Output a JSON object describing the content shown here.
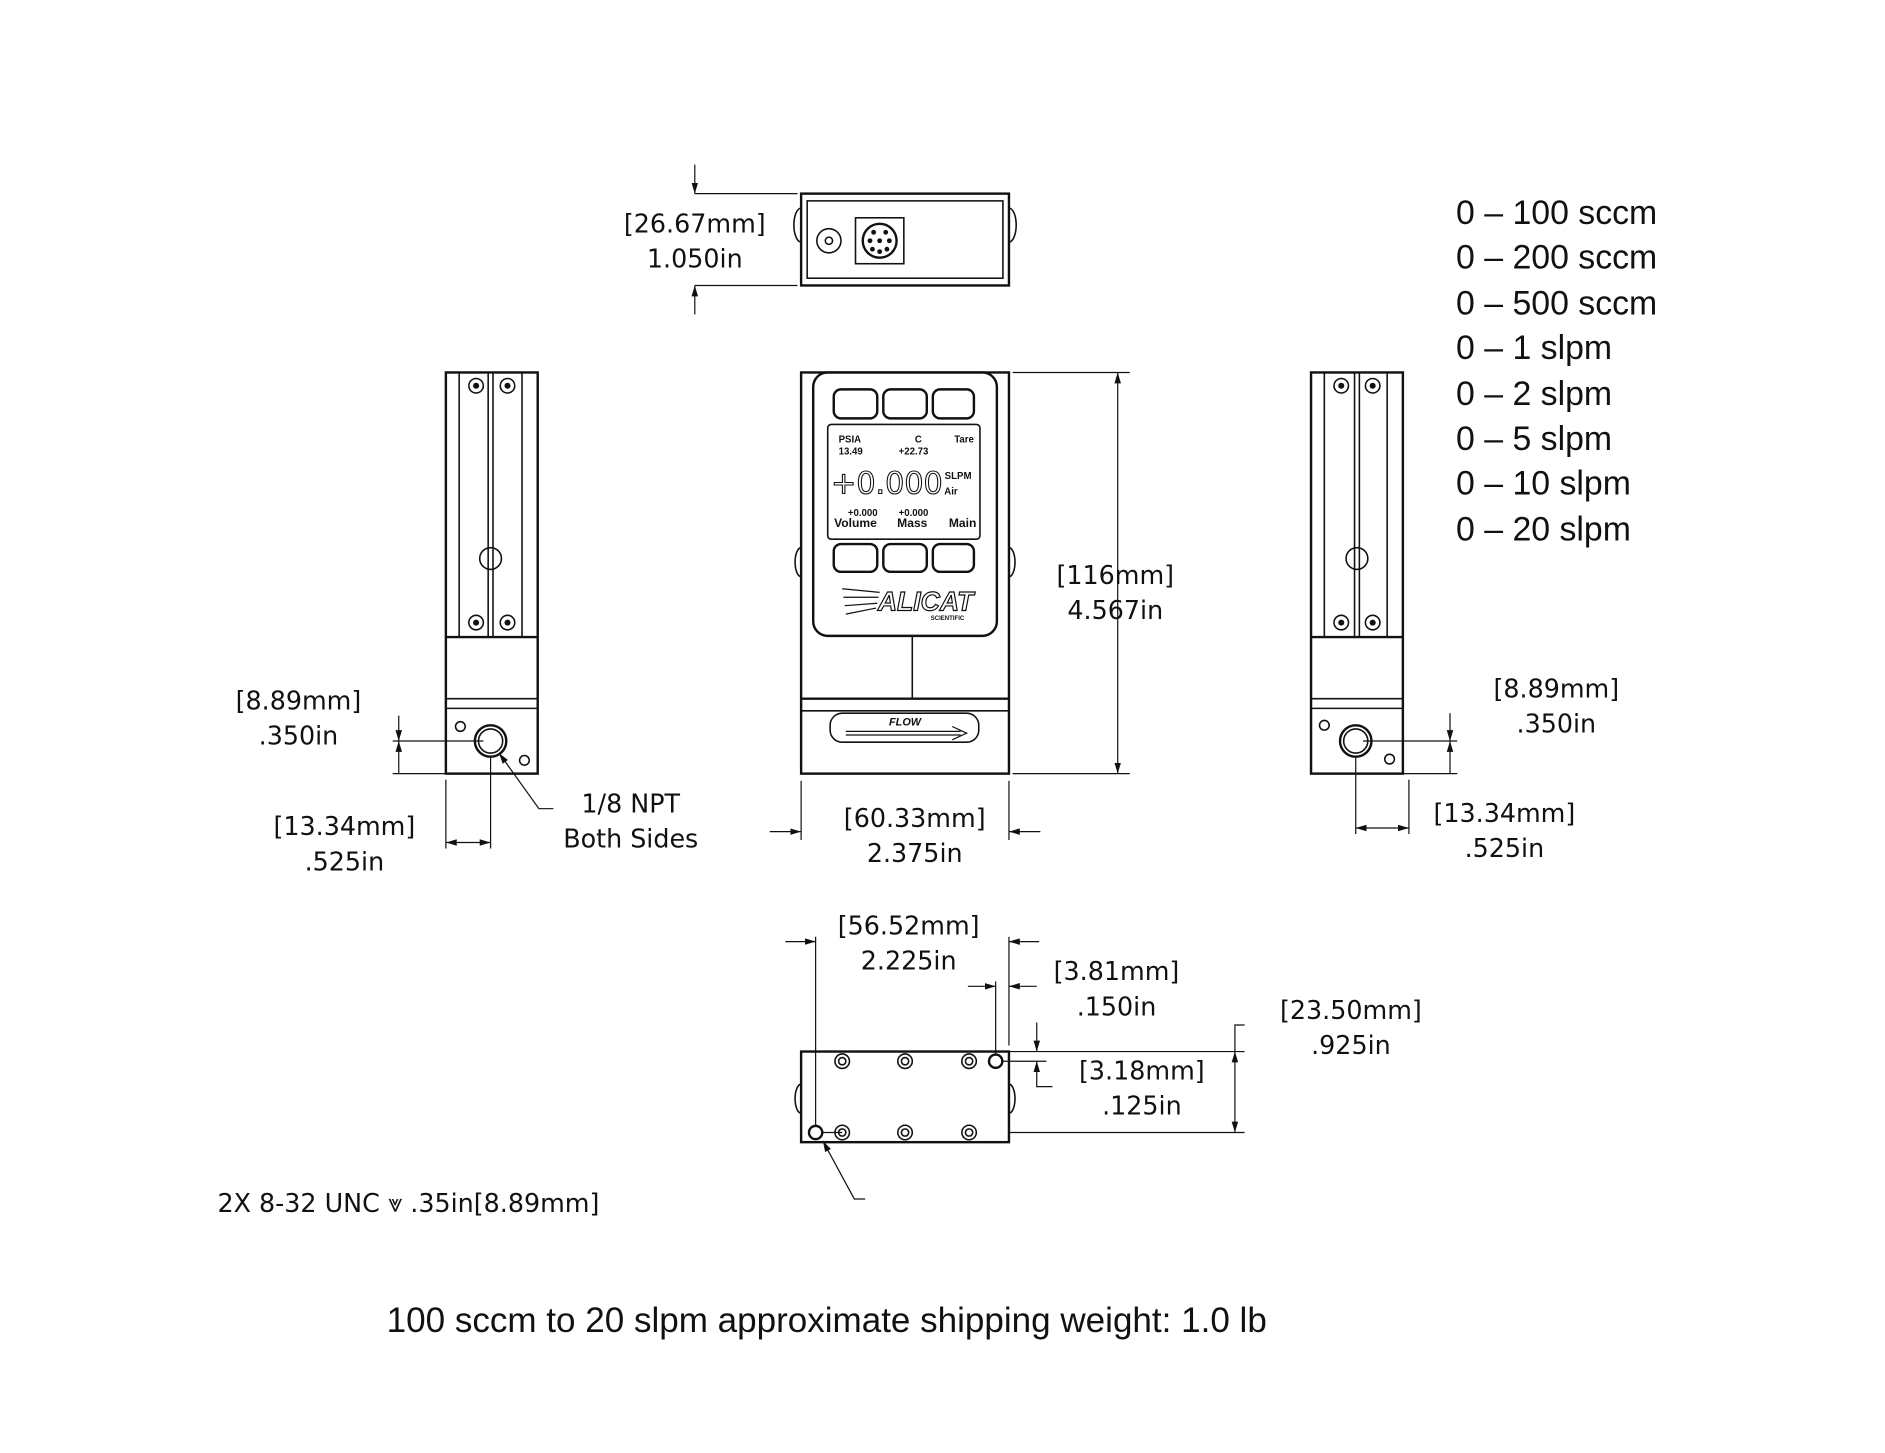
{
  "ranges": [
    "0 – 100 sccm",
    "0 – 200 sccm",
    "0 – 500 sccm",
    "0 – 1 slpm",
    "0 – 2 slpm",
    "0 – 5 slpm",
    "0 – 10 slpm",
    "0 – 20 slpm"
  ],
  "top_view": {
    "height_mm": "[26.67mm]",
    "height_in": "1.050in"
  },
  "left_view": {
    "port_height_mm": "[8.89mm]",
    "port_height_in": ".350in",
    "port_offset_mm": "[13.34mm]",
    "port_offset_in": ".525in",
    "port_note_line1": "1/8 NPT",
    "port_note_line2": "Both Sides"
  },
  "front_view": {
    "height_mm": "[116mm]",
    "height_in": "4.567in",
    "width_mm": "[60.33mm]",
    "width_in": "2.375in",
    "screen": {
      "top_left_label": "PSIA",
      "top_left_value": "13.49",
      "top_mid_label": "C",
      "top_mid_value": "+22.73",
      "top_right": "Tare",
      "main_value": "+0.000",
      "unit": "SLPM",
      "gas": "Air",
      "bottom_left_value": "+0.000",
      "bottom_left_label": "Volume",
      "bottom_mid_value": "+0.000",
      "bottom_mid_label": "Mass",
      "bottom_right": "Main"
    },
    "logo": "ALICAT",
    "logo_sub": "SCIENTIFIC",
    "flow_label": "FLOW"
  },
  "right_view": {
    "port_height_mm": "[8.89mm]",
    "port_height_in": ".350in",
    "port_offset_mm": "[13.34mm]",
    "port_offset_in": ".525in"
  },
  "bottom_view": {
    "hole_span_mm": "[56.52mm]",
    "hole_span_in": "2.225in",
    "edge_x_mm": "[3.81mm]",
    "edge_x_in": ".150in",
    "edge_y_mm": "[3.18mm]",
    "edge_y_in": ".125in",
    "depth_mm": "[23.50mm]",
    "depth_in": ".925in",
    "thread_note": "2X 8-32 UNC  ⩔ .35in[8.89mm]"
  },
  "footer": "100 sccm to 20 slpm approximate shipping weight: 1.0 lb"
}
